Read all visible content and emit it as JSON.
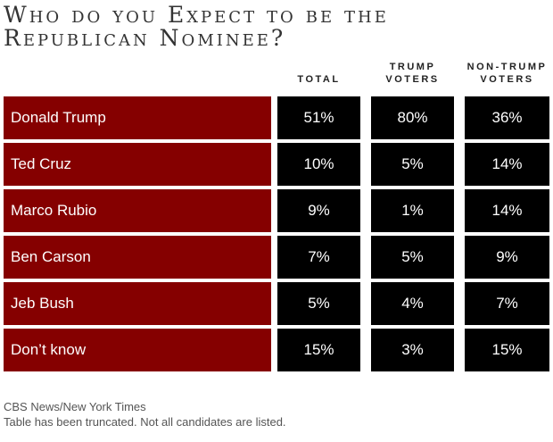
{
  "title_line1": "Who do you Expect to be the",
  "title_line2": "Republican Nominee?",
  "chart_data": {
    "type": "table",
    "columns": [
      "TOTAL",
      "TRUMP VOTERS",
      "NON-TRUMP VOTERS"
    ],
    "column_lines": [
      [
        "",
        "TOTAL"
      ],
      [
        "TRUMP",
        "VOTERS"
      ],
      [
        "NON-TRUMP",
        "VOTERS"
      ]
    ],
    "rows": [
      {
        "label": "Donald Trump",
        "values": [
          "51%",
          "80%",
          "36%"
        ]
      },
      {
        "label": "Ted Cruz",
        "values": [
          "10%",
          "5%",
          "14%"
        ]
      },
      {
        "label": "Marco Rubio",
        "values": [
          "9%",
          "1%",
          "14%"
        ]
      },
      {
        "label": "Ben Carson",
        "values": [
          "7%",
          "5%",
          "9%"
        ]
      },
      {
        "label": "Jeb Bush",
        "values": [
          "5%",
          "4%",
          "7%"
        ]
      },
      {
        "label": "Don’t know",
        "values": [
          "15%",
          "3%",
          "15%"
        ]
      }
    ],
    "colors": {
      "label_bg": "#850000",
      "value_bg": "#000000",
      "text": "#ffffff"
    }
  },
  "footer": {
    "source": "CBS News/New York Times",
    "note": "Table has been truncated. Not all candidates are listed."
  }
}
